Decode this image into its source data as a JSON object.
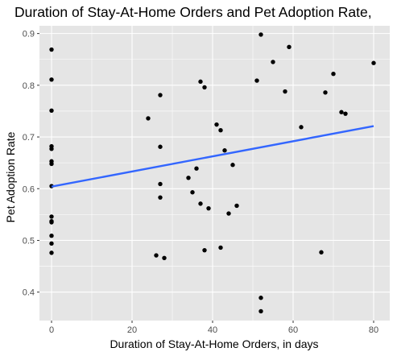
{
  "chart_data": {
    "type": "scatter",
    "title": "Duration of Stay-At-Home Orders and Pet Adoption Rate,",
    "xlabel": "Duration of Stay-At-Home Orders, in days",
    "ylabel": "Pet Adoption Rate",
    "xlim": [
      -3,
      84
    ],
    "ylim": [
      0.345,
      0.915
    ],
    "x_ticks": [
      0,
      20,
      40,
      60,
      80
    ],
    "x_tick_labels": [
      "0",
      "20",
      "40",
      "60",
      "80"
    ],
    "y_ticks": [
      0.4,
      0.5,
      0.6,
      0.7,
      0.8,
      0.9
    ],
    "y_tick_labels": [
      "0.4",
      "0.5",
      "0.6",
      "0.7",
      "0.8",
      "0.9"
    ],
    "grid": true,
    "background_color": "#e5e5e5",
    "grid_color": "#ffffff",
    "point_color": "#000000",
    "line_color": "#3366ff",
    "points": [
      {
        "x": 0,
        "y": 0.869
      },
      {
        "x": 0,
        "y": 0.811
      },
      {
        "x": 0,
        "y": 0.751
      },
      {
        "x": 0,
        "y": 0.682
      },
      {
        "x": 0,
        "y": 0.677
      },
      {
        "x": 0,
        "y": 0.653
      },
      {
        "x": 0,
        "y": 0.648
      },
      {
        "x": 0,
        "y": 0.605
      },
      {
        "x": 0,
        "y": 0.546
      },
      {
        "x": 0,
        "y": 0.537
      },
      {
        "x": 0,
        "y": 0.535
      },
      {
        "x": 0,
        "y": 0.509
      },
      {
        "x": 0,
        "y": 0.494
      },
      {
        "x": 0,
        "y": 0.476
      },
      {
        "x": 24,
        "y": 0.736
      },
      {
        "x": 26,
        "y": 0.471
      },
      {
        "x": 27,
        "y": 0.781
      },
      {
        "x": 27,
        "y": 0.681
      },
      {
        "x": 27,
        "y": 0.609
      },
      {
        "x": 27,
        "y": 0.583
      },
      {
        "x": 28,
        "y": 0.466
      },
      {
        "x": 34,
        "y": 0.621
      },
      {
        "x": 35,
        "y": 0.593
      },
      {
        "x": 36,
        "y": 0.639
      },
      {
        "x": 37,
        "y": 0.807
      },
      {
        "x": 37,
        "y": 0.571
      },
      {
        "x": 38,
        "y": 0.796
      },
      {
        "x": 38,
        "y": 0.481
      },
      {
        "x": 39,
        "y": 0.562
      },
      {
        "x": 41,
        "y": 0.724
      },
      {
        "x": 42,
        "y": 0.713
      },
      {
        "x": 42,
        "y": 0.486
      },
      {
        "x": 43,
        "y": 0.674
      },
      {
        "x": 44,
        "y": 0.552
      },
      {
        "x": 45,
        "y": 0.646
      },
      {
        "x": 46,
        "y": 0.567
      },
      {
        "x": 51,
        "y": 0.809
      },
      {
        "x": 52,
        "y": 0.898
      },
      {
        "x": 52,
        "y": 0.389
      },
      {
        "x": 52,
        "y": 0.363
      },
      {
        "x": 55,
        "y": 0.845
      },
      {
        "x": 58,
        "y": 0.788
      },
      {
        "x": 59,
        "y": 0.874
      },
      {
        "x": 62,
        "y": 0.719
      },
      {
        "x": 67,
        "y": 0.477
      },
      {
        "x": 68,
        "y": 0.786
      },
      {
        "x": 70,
        "y": 0.822
      },
      {
        "x": 72,
        "y": 0.748
      },
      {
        "x": 73,
        "y": 0.745
      },
      {
        "x": 80,
        "y": 0.843
      }
    ],
    "trend_line": {
      "x": [
        0,
        80
      ],
      "y": [
        0.604,
        0.721
      ]
    }
  }
}
